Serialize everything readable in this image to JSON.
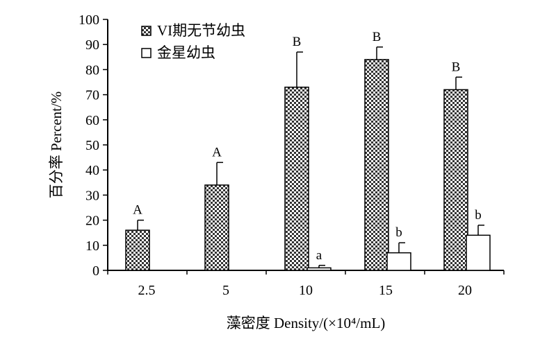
{
  "chart_data": {
    "type": "bar",
    "categories": [
      "2.5",
      "5",
      "10",
      "15",
      "20"
    ],
    "series": [
      {
        "name": "VI期无节幼虫",
        "values": [
          16,
          34,
          73,
          84,
          72
        ],
        "errors": [
          4,
          9,
          14,
          5,
          5
        ],
        "letters": [
          "A",
          "A",
          "B",
          "B",
          "B"
        ],
        "fill": "checker"
      },
      {
        "name": "金星幼虫",
        "values": [
          0,
          0,
          1,
          7,
          14
        ],
        "errors": [
          0,
          0,
          1,
          4,
          4
        ],
        "letters": [
          "",
          "",
          "a",
          "b",
          "b"
        ],
        "fill": "white"
      }
    ],
    "xlabel": "藻密度 Density/(×10⁴/mL)",
    "ylabel": "百分率 Percent/%",
    "ylim": [
      0,
      100
    ],
    "yticks": [
      "0",
      "10",
      "20",
      "30",
      "40",
      "50",
      "60",
      "70",
      "80",
      "90",
      "100"
    ],
    "grid": false,
    "legend_position": "top-left",
    "colors": {
      "axis": "#000000",
      "checker_dark": "#333333",
      "checker_light": "#ffffff"
    }
  }
}
